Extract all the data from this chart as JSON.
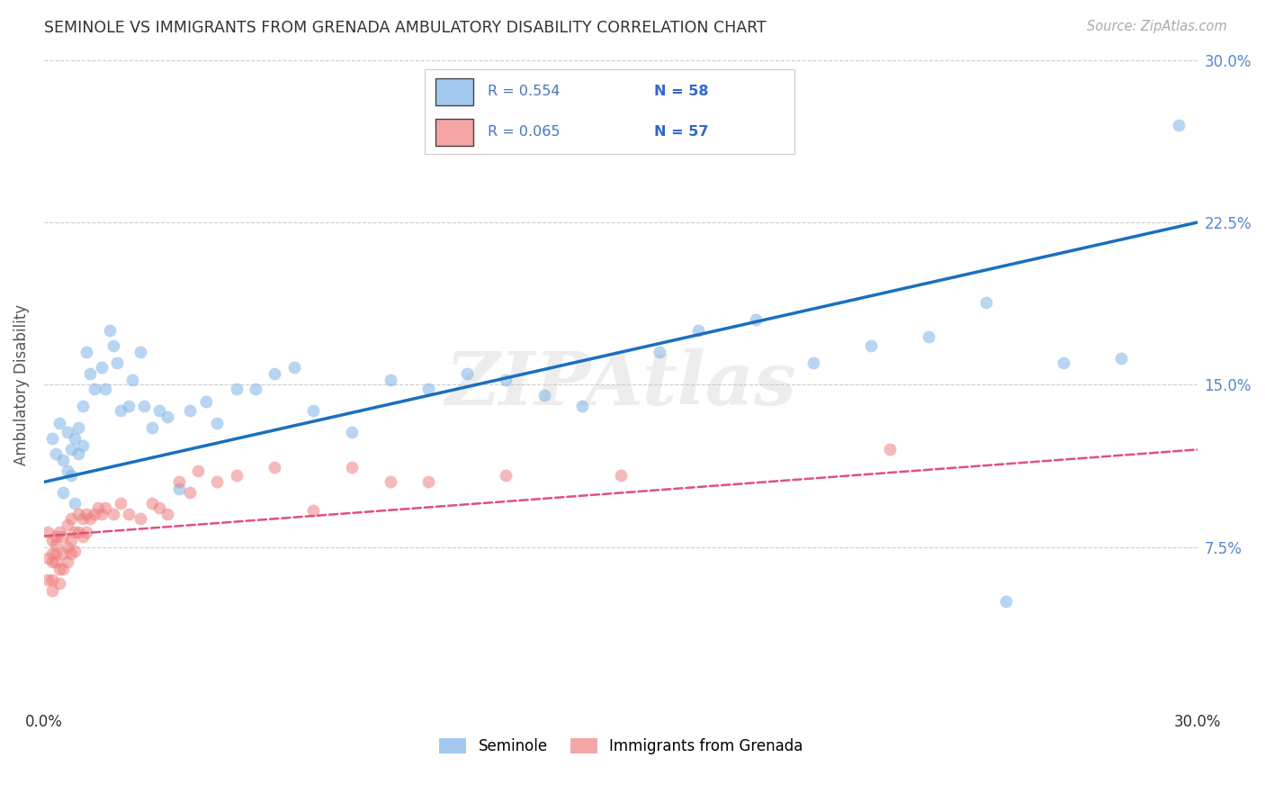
{
  "title": "SEMINOLE VS IMMIGRANTS FROM GRENADA AMBULATORY DISABILITY CORRELATION CHART",
  "source": "Source: ZipAtlas.com",
  "ylabel": "Ambulatory Disability",
  "xlim": [
    0.0,
    0.3
  ],
  "ylim": [
    0.0,
    0.3
  ],
  "xtick_vals": [
    0.0,
    0.075,
    0.15,
    0.225,
    0.3
  ],
  "xtick_labels": [
    "0.0%",
    "",
    "",
    "",
    "30.0%"
  ],
  "ytick_vals": [
    0.075,
    0.15,
    0.225,
    0.3
  ],
  "ytick_right_labels": [
    "7.5%",
    "15.0%",
    "22.5%",
    "30.0%"
  ],
  "seminole_R": 0.554,
  "seminole_N": 58,
  "grenada_R": 0.065,
  "grenada_N": 57,
  "seminole_color": "#7EB3E8",
  "grenada_color": "#F08080",
  "seminole_line_color": "#1A6FBF",
  "grenada_line_color": "#E05080",
  "seminole_x": [
    0.002,
    0.003,
    0.004,
    0.005,
    0.005,
    0.006,
    0.006,
    0.007,
    0.007,
    0.008,
    0.008,
    0.009,
    0.009,
    0.01,
    0.01,
    0.011,
    0.012,
    0.013,
    0.015,
    0.016,
    0.017,
    0.018,
    0.019,
    0.02,
    0.022,
    0.023,
    0.025,
    0.026,
    0.028,
    0.03,
    0.032,
    0.035,
    0.038,
    0.042,
    0.045,
    0.05,
    0.055,
    0.06,
    0.065,
    0.07,
    0.08,
    0.09,
    0.1,
    0.11,
    0.12,
    0.13,
    0.14,
    0.16,
    0.17,
    0.185,
    0.2,
    0.215,
    0.23,
    0.25,
    0.265,
    0.28,
    0.295,
    0.245
  ],
  "seminole_y": [
    0.125,
    0.118,
    0.132,
    0.1,
    0.115,
    0.11,
    0.128,
    0.108,
    0.12,
    0.095,
    0.125,
    0.13,
    0.118,
    0.14,
    0.122,
    0.165,
    0.155,
    0.148,
    0.158,
    0.148,
    0.175,
    0.168,
    0.16,
    0.138,
    0.14,
    0.152,
    0.165,
    0.14,
    0.13,
    0.138,
    0.135,
    0.102,
    0.138,
    0.142,
    0.132,
    0.148,
    0.148,
    0.155,
    0.158,
    0.138,
    0.128,
    0.152,
    0.148,
    0.155,
    0.152,
    0.145,
    0.14,
    0.165,
    0.175,
    0.18,
    0.16,
    0.168,
    0.172,
    0.05,
    0.16,
    0.162,
    0.27,
    0.188
  ],
  "grenada_x": [
    0.001,
    0.001,
    0.001,
    0.002,
    0.002,
    0.002,
    0.002,
    0.002,
    0.003,
    0.003,
    0.003,
    0.003,
    0.004,
    0.004,
    0.004,
    0.005,
    0.005,
    0.005,
    0.006,
    0.006,
    0.006,
    0.007,
    0.007,
    0.007,
    0.008,
    0.008,
    0.009,
    0.009,
    0.01,
    0.01,
    0.011,
    0.011,
    0.012,
    0.013,
    0.014,
    0.015,
    0.016,
    0.018,
    0.02,
    0.022,
    0.025,
    0.028,
    0.03,
    0.032,
    0.035,
    0.038,
    0.04,
    0.045,
    0.05,
    0.06,
    0.07,
    0.08,
    0.09,
    0.1,
    0.12,
    0.15,
    0.22
  ],
  "grenada_y": [
    0.082,
    0.07,
    0.06,
    0.078,
    0.072,
    0.068,
    0.06,
    0.055,
    0.08,
    0.072,
    0.068,
    0.076,
    0.082,
    0.065,
    0.058,
    0.08,
    0.072,
    0.065,
    0.085,
    0.075,
    0.068,
    0.088,
    0.078,
    0.072,
    0.082,
    0.073,
    0.09,
    0.082,
    0.088,
    0.08,
    0.09,
    0.082,
    0.088,
    0.09,
    0.093,
    0.09,
    0.093,
    0.09,
    0.095,
    0.09,
    0.088,
    0.095,
    0.093,
    0.09,
    0.105,
    0.1,
    0.11,
    0.105,
    0.108,
    0.112,
    0.092,
    0.112,
    0.105,
    0.105,
    0.108,
    0.108,
    0.12
  ],
  "seminole_regr": [
    0.105,
    0.225
  ],
  "grenada_regr": [
    0.08,
    0.12
  ],
  "watermark": "ZIPAtlas",
  "background_color": "#FFFFFF",
  "grid_color": "#DDDDDD",
  "legend_R_color": "#4477BB",
  "legend_N_color": "#3366CC",
  "tick_color": "#5588CC"
}
